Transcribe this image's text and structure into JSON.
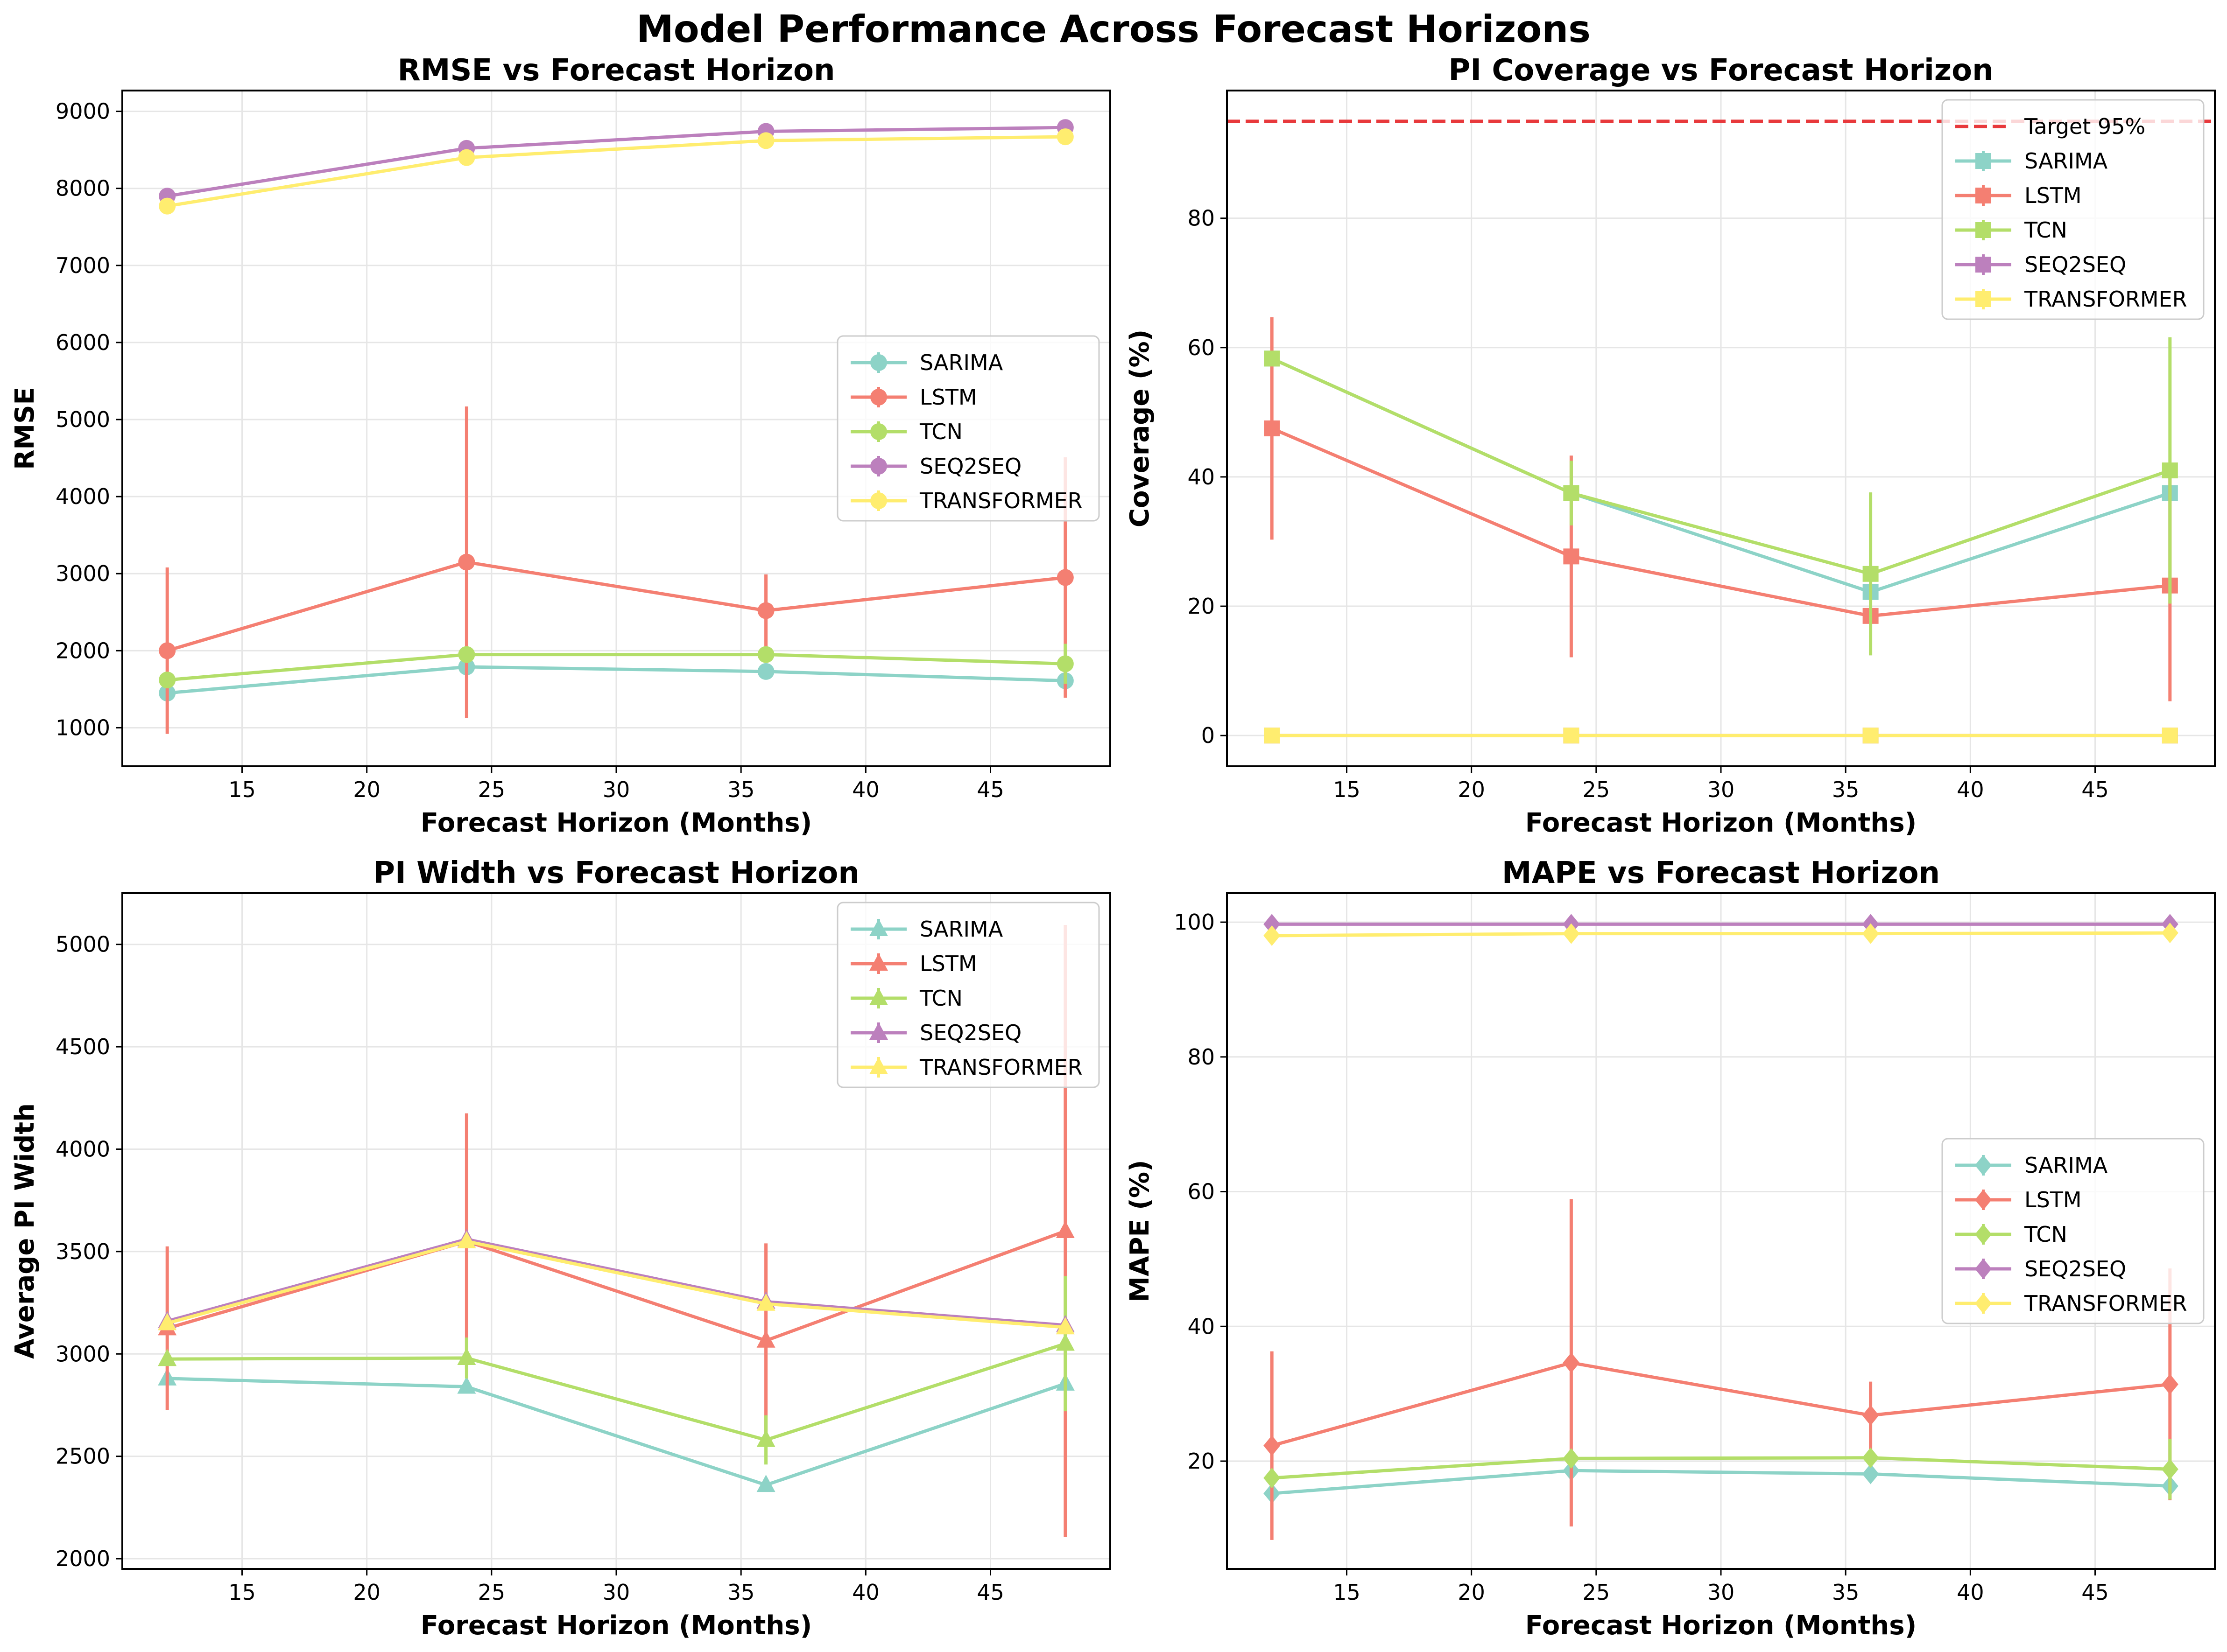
{
  "suptitle": "Model Performance Across Forecast Horizons",
  "colors": {
    "SARIMA": "#8dd3c7",
    "LSTM": "#f47f72",
    "TCN": "#b3de69",
    "SEQ2SEQ": "#bc80bd",
    "TRANSFORMER": "#ffed6f",
    "target": "#e8393c",
    "grid": "#e6e6e6"
  },
  "chart_data": [
    {
      "id": "rmse",
      "type": "line",
      "title": "RMSE vs Forecast Horizon",
      "xlabel": "Forecast Horizon (Months)",
      "ylabel": "RMSE",
      "marker": "circle",
      "xlim": [
        10.2,
        49.8
      ],
      "ylim": [
        500,
        9270
      ],
      "xticks": [
        "15",
        "20",
        "25",
        "30",
        "35",
        "40",
        "45"
      ],
      "yticks": [
        "1000",
        "2000",
        "3000",
        "4000",
        "5000",
        "6000",
        "7000",
        "8000",
        "9000"
      ],
      "grid": true,
      "legend_position": "center-right",
      "x": [
        12,
        24,
        36,
        48
      ],
      "series": [
        {
          "name": "SARIMA",
          "values": [
            1450,
            1790,
            1730,
            1610
          ],
          "errors": [
            0,
            0,
            0,
            0
          ]
        },
        {
          "name": "LSTM",
          "values": [
            2000,
            3150,
            2520,
            2950
          ],
          "errors": [
            1080,
            2020,
            470,
            1560
          ]
        },
        {
          "name": "TCN",
          "values": [
            1620,
            1950,
            1950,
            1830
          ],
          "errors": [
            0,
            0,
            0,
            260
          ]
        },
        {
          "name": "SEQ2SEQ",
          "values": [
            7900,
            8520,
            8740,
            8790
          ],
          "errors": [
            0,
            0,
            0,
            0
          ]
        },
        {
          "name": "TRANSFORMER",
          "values": [
            7770,
            8400,
            8620,
            8670
          ],
          "errors": [
            0,
            0,
            0,
            0
          ]
        }
      ]
    },
    {
      "id": "coverage",
      "type": "line",
      "title": "PI Coverage vs Forecast Horizon",
      "xlabel": "Forecast Horizon (Months)",
      "ylabel": "Coverage (%)",
      "marker": "square",
      "xlim": [
        10.2,
        49.8
      ],
      "ylim": [
        -4.75,
        99.75
      ],
      "xticks": [
        "15",
        "20",
        "25",
        "30",
        "35",
        "40",
        "45"
      ],
      "yticks": [
        "0",
        "20",
        "40",
        "60",
        "80"
      ],
      "grid": true,
      "legend_position": "upper-right",
      "target": {
        "label": "Target 95%",
        "value": 95
      },
      "x": [
        12,
        24,
        36,
        48
      ],
      "series": [
        {
          "name": "SARIMA",
          "values": [
            58.3,
            37.5,
            22.2,
            37.5
          ],
          "errors": [
            0,
            0,
            0,
            0
          ]
        },
        {
          "name": "LSTM",
          "values": [
            47.5,
            27.7,
            18.5,
            23.2
          ],
          "errors": [
            17.2,
            15.6,
            0,
            17.9
          ]
        },
        {
          "name": "TCN",
          "values": [
            58.3,
            37.5,
            25.0,
            41.0
          ],
          "errors": [
            0,
            5.0,
            12.6,
            20.6
          ]
        },
        {
          "name": "SEQ2SEQ",
          "values": [
            0,
            0,
            0,
            0
          ],
          "errors": [
            0,
            0,
            0,
            0
          ]
        },
        {
          "name": "TRANSFORMER",
          "values": [
            0,
            0,
            0,
            0
          ],
          "errors": [
            0,
            0,
            0,
            0
          ]
        }
      ]
    },
    {
      "id": "width",
      "type": "line",
      "title": "PI Width vs Forecast Horizon",
      "xlabel": "Forecast Horizon (Months)",
      "ylabel": "Average PI Width",
      "marker": "triangle",
      "xlim": [
        10.2,
        49.8
      ],
      "ylim": [
        1950,
        5250
      ],
      "xticks": [
        "15",
        "20",
        "25",
        "30",
        "35",
        "40",
        "45"
      ],
      "yticks": [
        "2000",
        "2500",
        "3000",
        "3500",
        "4000",
        "4500",
        "5000"
      ],
      "grid": true,
      "legend_position": "upper-right",
      "x": [
        12,
        24,
        36,
        48
      ],
      "series": [
        {
          "name": "SARIMA",
          "values": [
            2880,
            2840,
            2360,
            2855
          ],
          "errors": [
            0,
            0,
            0,
            0
          ]
        },
        {
          "name": "LSTM",
          "values": [
            3125,
            3550,
            3065,
            3600
          ],
          "errors": [
            400,
            625,
            475,
            1495
          ]
        },
        {
          "name": "TCN",
          "values": [
            2975,
            2980,
            2580,
            3050
          ],
          "errors": [
            0,
            100,
            120,
            330
          ]
        },
        {
          "name": "SEQ2SEQ",
          "values": [
            3160,
            3560,
            3255,
            3140
          ],
          "errors": [
            0,
            0,
            0,
            0
          ]
        },
        {
          "name": "TRANSFORMER",
          "values": [
            3150,
            3550,
            3245,
            3130
          ],
          "errors": [
            0,
            0,
            0,
            0
          ]
        }
      ]
    },
    {
      "id": "mape",
      "type": "line",
      "title": "MAPE vs Forecast Horizon",
      "xlabel": "Forecast Horizon (Months)",
      "ylabel": "MAPE (%)",
      "marker": "diamond",
      "xlim": [
        10.2,
        49.8
      ],
      "ylim": [
        4,
        104.3
      ],
      "xticks": [
        "15",
        "20",
        "25",
        "30",
        "35",
        "40",
        "45"
      ],
      "yticks": [
        "20",
        "40",
        "60",
        "80",
        "100"
      ],
      "grid": true,
      "legend_position": "center-right",
      "x": [
        12,
        24,
        36,
        48
      ],
      "series": [
        {
          "name": "SARIMA",
          "values": [
            15.2,
            18.6,
            18.1,
            16.3
          ],
          "errors": [
            0,
            0,
            0,
            0
          ]
        },
        {
          "name": "LSTM",
          "values": [
            22.3,
            34.6,
            26.8,
            31.4
          ],
          "errors": [
            14.0,
            24.3,
            5.0,
            17.2
          ]
        },
        {
          "name": "TCN",
          "values": [
            17.5,
            20.4,
            20.5,
            18.8
          ],
          "errors": [
            0,
            0,
            0,
            4.5
          ]
        },
        {
          "name": "SEQ2SEQ",
          "values": [
            99.7,
            99.7,
            99.7,
            99.7
          ],
          "errors": [
            0,
            0,
            0,
            0
          ]
        },
        {
          "name": "TRANSFORMER",
          "values": [
            98.0,
            98.3,
            98.3,
            98.4
          ],
          "errors": [
            0,
            0,
            0,
            0
          ]
        }
      ]
    }
  ]
}
